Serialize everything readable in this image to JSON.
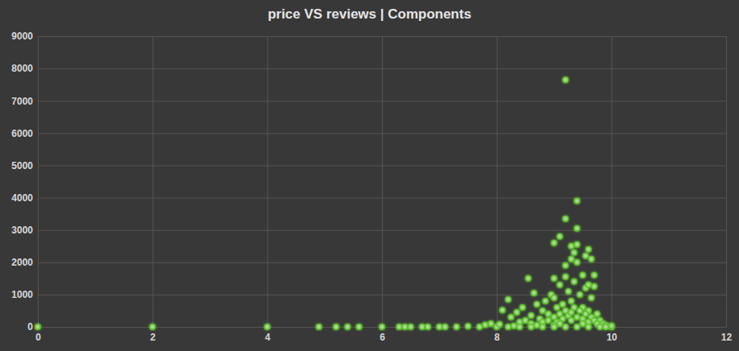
{
  "chart_data": {
    "type": "scatter",
    "title": "price VS reviews | Components",
    "x": [
      0,
      2,
      4,
      4.9,
      5.2,
      5.4,
      5.6,
      6,
      6.3,
      6.4,
      6.5,
      6.7,
      6.8,
      7,
      7.1,
      7.3,
      7.5,
      7.7,
      7.8,
      7.9,
      8,
      8.05,
      8.1,
      8.2,
      8.25,
      8.35,
      8.4,
      8.45,
      8.5,
      8.55,
      8.6,
      8.65,
      8.7,
      8.75,
      8.8,
      8.85,
      8.9,
      8.95,
      9.0,
      9.0,
      9.0,
      9.05,
      9.1,
      9.1,
      9.15,
      9.2,
      9.2,
      9.2,
      9.2,
      9.25,
      9.3,
      9.3,
      9.3,
      9.35,
      9.35,
      9.4,
      9.4,
      9.4,
      9.4,
      9.45,
      9.5,
      9.5,
      9.55,
      9.55,
      9.6,
      9.6,
      9.6,
      9.65,
      9.65,
      9.7,
      9.7,
      9.75,
      9.8,
      9.85,
      9.9,
      10,
      10,
      8.6,
      8.8,
      8.9,
      9.0,
      9.05,
      9.1,
      9.15,
      9.2,
      9.25,
      9.3,
      9.35,
      9.4,
      9.45,
      9.5,
      9.55,
      9.6,
      9.65,
      9.7,
      9.75,
      9.1,
      9.3,
      9.5,
      9.0,
      8.7,
      8.3,
      9.8,
      9.6,
      9.4,
      9.2,
      9.0,
      8.8,
      8.6,
      8.4,
      8.2,
      9.9
    ],
    "values": [
      0,
      0,
      0,
      0,
      0,
      0,
      0,
      0,
      0,
      0,
      0,
      0,
      0,
      0,
      0,
      0,
      20,
      0,
      60,
      100,
      0,
      80,
      520,
      850,
      300,
      450,
      150,
      600,
      200,
      1500,
      350,
      1050,
      700,
      250,
      500,
      800,
      400,
      1000,
      900,
      1500,
      2600,
      600,
      1300,
      2800,
      700,
      7650,
      3350,
      1900,
      1550,
      1100,
      2500,
      2100,
      800,
      2300,
      1400,
      3900,
      3050,
      2550,
      2000,
      1000,
      1600,
      600,
      2200,
      1200,
      2400,
      1300,
      500,
      2100,
      900,
      1600,
      1250,
      400,
      200,
      100,
      50,
      0,
      30,
      100,
      150,
      200,
      300,
      150,
      400,
      250,
      500,
      350,
      450,
      600,
      300,
      500,
      250,
      400,
      150,
      300,
      200,
      100,
      100,
      200,
      100,
      50,
      50,
      30,
      0,
      0,
      0,
      0,
      0,
      0,
      0,
      0,
      0,
      0
    ],
    "color": "#5ec42a",
    "marker": "circle",
    "xlim": [
      0,
      12
    ],
    "xticks": [
      0,
      2,
      4,
      6,
      8,
      10,
      12
    ],
    "ylim": [
      0,
      9000
    ],
    "yticks": [
      0,
      1000,
      2000,
      3000,
      4000,
      5000,
      6000,
      7000,
      8000,
      9000
    ],
    "grid": true
  }
}
